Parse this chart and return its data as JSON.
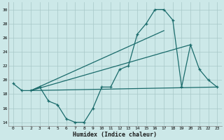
{
  "title": "",
  "xlabel": "Humidex (Indice chaleur)",
  "xlim": [
    -0.5,
    23.5
  ],
  "ylim": [
    13.5,
    31.0
  ],
  "yticks": [
    14,
    16,
    18,
    20,
    22,
    24,
    26,
    28,
    30
  ],
  "xticks": [
    0,
    1,
    2,
    3,
    4,
    5,
    6,
    7,
    8,
    9,
    10,
    11,
    12,
    13,
    14,
    15,
    16,
    17,
    18,
    19,
    20,
    21,
    22,
    23
  ],
  "bg_color": "#cce8e8",
  "grid_color": "#a8c8c8",
  "line_color": "#1a6b6b",
  "main_x": [
    0,
    1,
    2,
    3,
    4,
    5,
    6,
    7,
    8,
    9,
    10,
    11,
    12,
    13,
    14,
    15,
    16,
    17,
    18,
    19,
    20,
    21,
    22,
    23
  ],
  "main_y": [
    19.5,
    18.5,
    18.5,
    19.0,
    17.0,
    16.5,
    14.5,
    14.0,
    14.0,
    16.0,
    19.0,
    19.0,
    21.5,
    22.0,
    26.5,
    28.0,
    30.0,
    30.0,
    28.5,
    19.0,
    25.0,
    21.5,
    20.0,
    19.0
  ],
  "line1_x": [
    2,
    23
  ],
  "line1_y": [
    18.5,
    19.0
  ],
  "line2_x": [
    2,
    20
  ],
  "line2_y": [
    18.5,
    25.0
  ],
  "line3_x": [
    2,
    17
  ],
  "line3_y": [
    18.5,
    27.0
  ]
}
